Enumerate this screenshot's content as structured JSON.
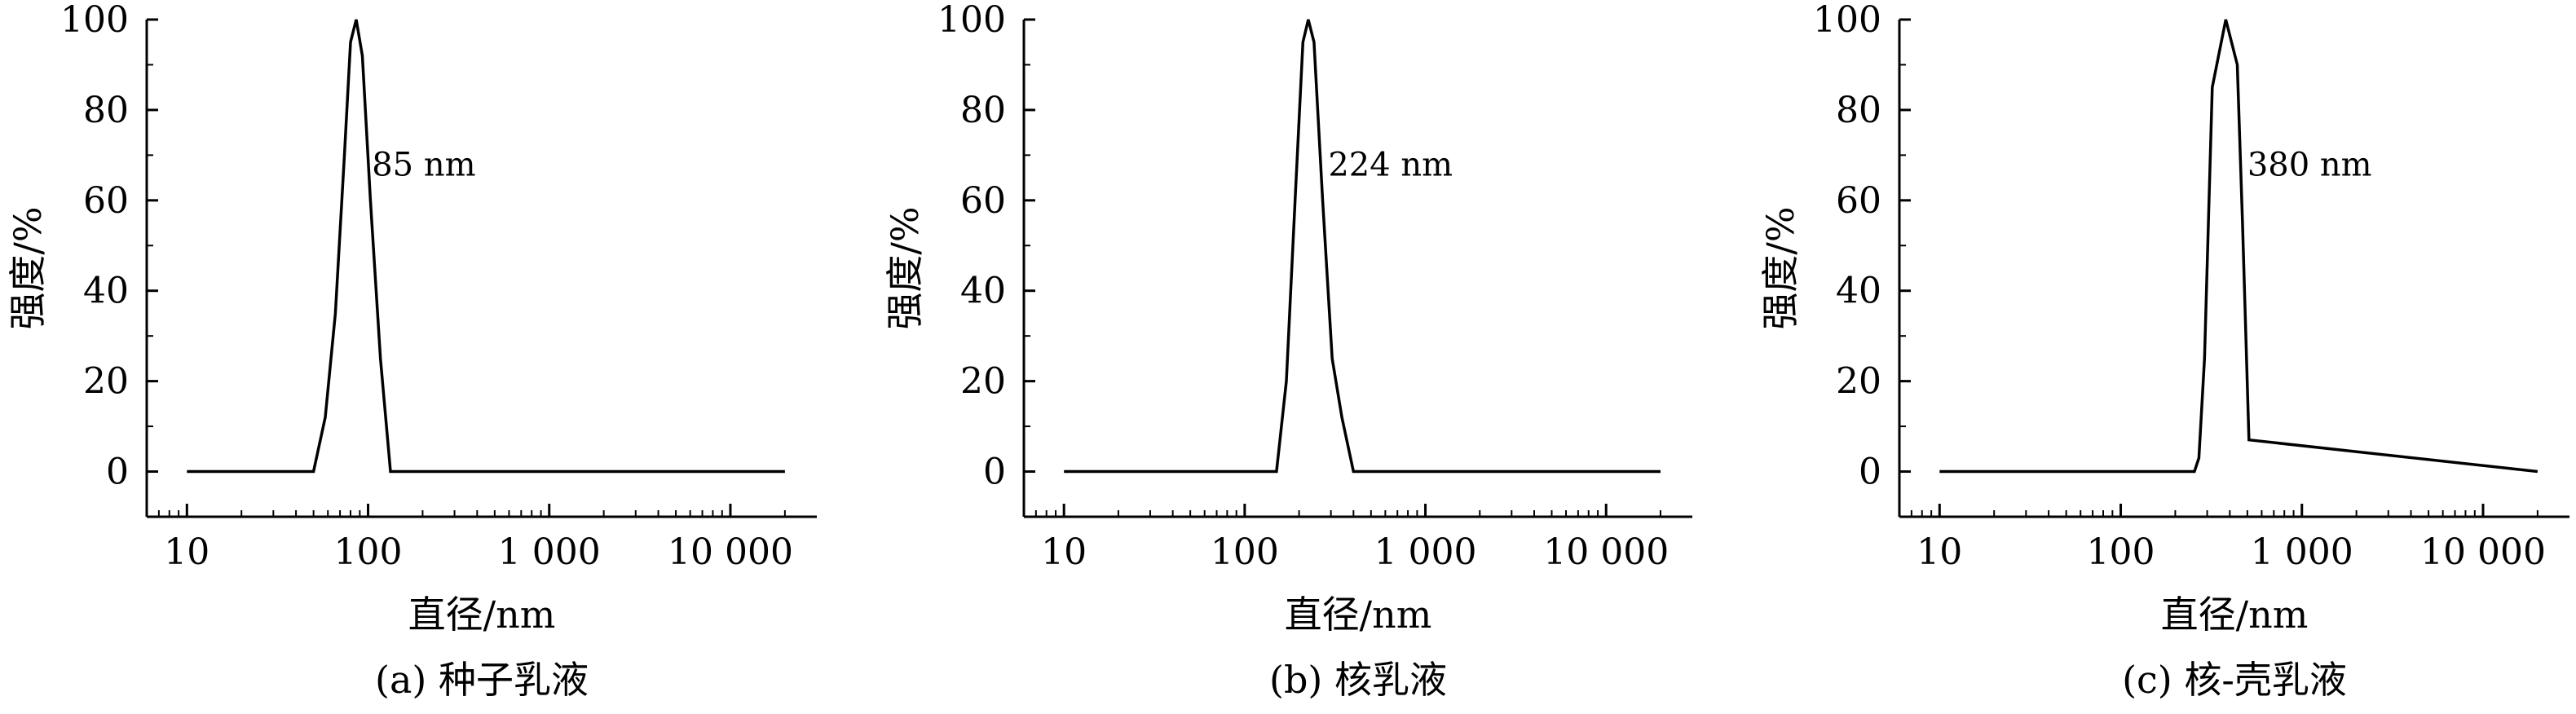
{
  "chart_data": [
    {
      "type": "line",
      "caption": "(a) 种子乳液",
      "xlabel": "直径/nm",
      "ylabel": "强度/%",
      "xscale": "log",
      "xlim": [
        6,
        30000
      ],
      "ylim": [
        -10,
        100
      ],
      "xticks": [
        10,
        100,
        1000,
        10000
      ],
      "xtick_labels": [
        "10",
        "100",
        "1 000",
        "10 000"
      ],
      "yticks": [
        0,
        20,
        40,
        60,
        80,
        100
      ],
      "ytick_labels": [
        "0",
        "20",
        "40",
        "60",
        "80",
        "100"
      ],
      "peak_label": "85 nm",
      "peak_label_pos": [
        105,
        68
      ],
      "series": [
        {
          "x": [
            10,
            50,
            58,
            66,
            74,
            80,
            86,
            93,
            103,
            117,
            133,
            20000
          ],
          "y": [
            0,
            0,
            12,
            35,
            70,
            95,
            100,
            92,
            60,
            25,
            0,
            0
          ]
        }
      ]
    },
    {
      "type": "line",
      "caption": "(b) 核乳液",
      "xlabel": "直径/nm",
      "ylabel": "强度/%",
      "xscale": "log",
      "xlim": [
        6,
        30000
      ],
      "ylim": [
        -10,
        100
      ],
      "xticks": [
        10,
        100,
        1000,
        10000
      ],
      "xtick_labels": [
        "10",
        "100",
        "1 000",
        "10 000"
      ],
      "yticks": [
        0,
        20,
        40,
        60,
        80,
        100
      ],
      "ytick_labels": [
        "0",
        "20",
        "40",
        "60",
        "80",
        "100"
      ],
      "peak_label": "224 nm",
      "peak_label_pos": [
        290,
        68
      ],
      "series": [
        {
          "x": [
            10,
            150,
            170,
            190,
            210,
            225,
            242,
            270,
            305,
            345,
            400,
            20000
          ],
          "y": [
            0,
            0,
            20,
            60,
            95,
            100,
            95,
            60,
            25,
            12,
            0,
            0
          ]
        }
      ]
    },
    {
      "type": "line",
      "caption": "(c) 核-壳乳液",
      "xlabel": "直径/nm",
      "ylabel": "强度/%",
      "xscale": "log",
      "xlim": [
        6,
        30000
      ],
      "ylim": [
        -10,
        100
      ],
      "xticks": [
        10,
        100,
        1000,
        10000
      ],
      "xtick_labels": [
        "10",
        "100",
        "1 000",
        "10 000"
      ],
      "yticks": [
        0,
        20,
        40,
        60,
        80,
        100
      ],
      "ytick_labels": [
        "0",
        "20",
        "40",
        "60",
        "80",
        "100"
      ],
      "peak_label": "380 nm",
      "peak_label_pos": [
        500,
        68
      ],
      "series": [
        {
          "x": [
            10,
            255,
            270,
            290,
            320,
            380,
            440,
            470,
            510,
            20000
          ],
          "y": [
            0,
            0,
            3,
            25,
            85,
            100,
            90,
            55,
            7,
            0
          ]
        }
      ]
    }
  ]
}
